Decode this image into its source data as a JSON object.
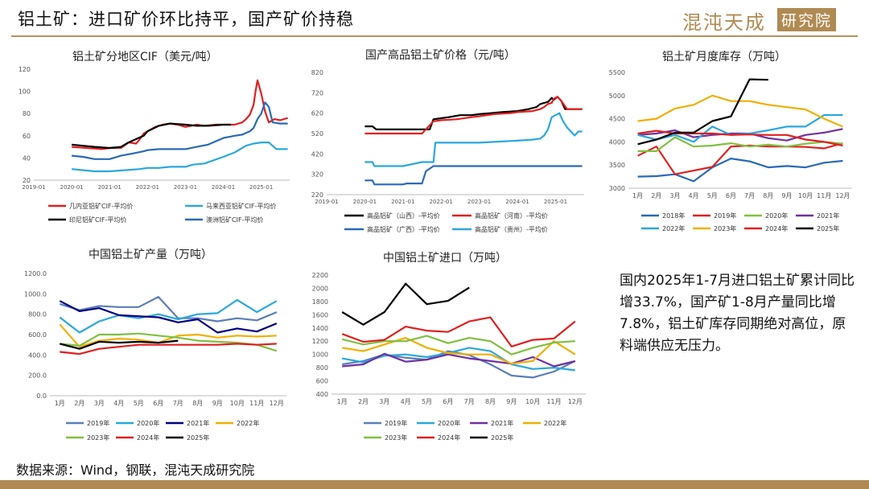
{
  "header": {
    "title": "铝土矿：进口矿价环比持平，国产矿价持稳",
    "logo_main": "混沌天成",
    "logo_box": "研究院"
  },
  "note": "国内2025年1-7月进口铝土矿累计同比增33.7%，国产矿1-8月产量同比增7.8%，铝土矿库存同期绝对高位，原料端供应无压力。",
  "source": "数据来源：Wind，钢联，混沌天成研究院",
  "chart_data": [
    {
      "id": "cif",
      "type": "line",
      "title": "铝土矿分地区CIF（美元/吨）",
      "x_ticks": [
        "2019-01",
        "2020-01",
        "2021-01",
        "2022-01",
        "2023-01",
        "2024-01",
        "2025-01"
      ],
      "x_range": [
        2019.0,
        2025.75
      ],
      "ylim": [
        20,
        120
      ],
      "y_ticks": [
        20,
        40,
        60,
        80,
        100,
        120
      ],
      "series": [
        {
          "name": "几内亚铝矿CIF-平均价",
          "color": "#e02020",
          "x": [
            2020.0,
            2020.4,
            2020.8,
            2021.0,
            2021.3,
            2021.5,
            2021.7,
            2021.8,
            2021.9,
            2022.0,
            2022.2,
            2022.4,
            2022.6,
            2022.8,
            2023.0,
            2023.3,
            2023.5,
            2023.8,
            2024.0,
            2024.3,
            2024.5,
            2024.6,
            2024.7,
            2024.8,
            2024.85,
            2024.9,
            2025.0,
            2025.1,
            2025.2,
            2025.35,
            2025.5,
            2025.7
          ],
          "y": [
            50,
            49,
            48,
            49,
            49,
            54,
            53,
            57,
            62,
            64,
            68,
            70,
            71,
            70,
            68,
            70,
            69,
            70,
            70,
            70,
            72,
            75,
            79,
            88,
            100,
            110,
            98,
            82,
            72,
            75,
            74,
            76
          ]
        },
        {
          "name": "马来西亚铝矿CIF-平均价",
          "color": "#2aa8dc",
          "x": [
            2020.0,
            2020.3,
            2020.6,
            2021.0,
            2021.4,
            2021.8,
            2022.0,
            2022.3,
            2022.6,
            2023.0,
            2023.2,
            2023.5,
            2024.0,
            2024.3,
            2024.6,
            2024.8,
            2025.0,
            2025.2,
            2025.4,
            2025.7
          ],
          "y": [
            30,
            29,
            28,
            28,
            29,
            30,
            31,
            31,
            32,
            32,
            34,
            35,
            41,
            45,
            51,
            53,
            54,
            54,
            48,
            48
          ]
        },
        {
          "name": "印尼铝矿CIF-平均价",
          "color": "#000000",
          "x": [
            2020.0,
            2020.3,
            2020.6,
            2021.0,
            2021.3,
            2021.5,
            2021.7,
            2021.9,
            2022.0,
            2022.3,
            2022.6,
            2023.0,
            2023.3,
            2023.6,
            2024.0,
            2024.2
          ],
          "y": [
            52,
            51,
            50,
            49,
            50,
            54,
            57,
            60,
            64,
            69,
            71,
            70,
            69,
            69,
            70,
            70
          ]
        },
        {
          "name": "澳洲铝矿CIF-平均价",
          "color": "#2a6ab8",
          "x": [
            2020.0,
            2020.3,
            2020.6,
            2021.0,
            2021.3,
            2021.6,
            2021.9,
            2022.0,
            2022.3,
            2022.8,
            2023.0,
            2023.3,
            2023.6,
            2024.0,
            2024.3,
            2024.5,
            2024.7,
            2024.8,
            2024.9,
            2025.0,
            2025.1,
            2025.2,
            2025.3,
            2025.5,
            2025.7
          ],
          "y": [
            42,
            41,
            39,
            39,
            42,
            44,
            46,
            47,
            48,
            48,
            48,
            50,
            52,
            58,
            60,
            61,
            64,
            67,
            75,
            80,
            90,
            86,
            72,
            71,
            71
          ]
        }
      ]
    },
    {
      "id": "domestic",
      "type": "line",
      "title": "国产高品铝土矿价格（元/吨）",
      "x_ticks": [
        "2019-01",
        "2020-01",
        "2021-01",
        "2022-01",
        "2023-01",
        "2024-01",
        "2025-01"
      ],
      "x_range": [
        2019.0,
        2025.75
      ],
      "ylim": [
        220,
        820
      ],
      "y_ticks": [
        220,
        320,
        420,
        520,
        620,
        720,
        820
      ],
      "series": [
        {
          "name": "高品铝矿（山西）-平均价",
          "color": "#000000",
          "x": [
            2020.0,
            2020.2,
            2020.3,
            2021.0,
            2021.5,
            2021.7,
            2021.8,
            2022.0,
            2022.2,
            2022.5,
            2022.8,
            2023.0,
            2023.3,
            2023.6,
            2024.0,
            2024.3,
            2024.5,
            2024.6,
            2024.7,
            2024.8,
            2024.9,
            2024.95,
            2025.05,
            2025.15,
            2025.25,
            2025.7
          ],
          "y": [
            555,
            555,
            540,
            540,
            540,
            540,
            590,
            595,
            600,
            610,
            610,
            615,
            620,
            625,
            630,
            640,
            650,
            665,
            670,
            675,
            695,
            685,
            700,
            680,
            640,
            640
          ]
        },
        {
          "name": "高品铝矿（河南）-平均价",
          "color": "#e02020",
          "x": [
            2020.0,
            2020.5,
            2021.0,
            2021.5,
            2021.8,
            2022.0,
            2022.4,
            2022.8,
            2023.0,
            2023.4,
            2023.8,
            2024.0,
            2024.4,
            2024.6,
            2024.7,
            2024.8,
            2024.9,
            2024.95,
            2025.05,
            2025.15,
            2025.3,
            2025.7
          ],
          "y": [
            520,
            520,
            520,
            520,
            580,
            585,
            590,
            600,
            605,
            615,
            620,
            625,
            630,
            640,
            650,
            665,
            670,
            690,
            700,
            680,
            640,
            640
          ]
        },
        {
          "name": "高品铝矿（广西）-平均价",
          "color": "#2a6ab8",
          "x": [
            2020.0,
            2020.2,
            2020.25,
            2021.0,
            2021.1,
            2021.5,
            2021.6,
            2021.8,
            2025.7
          ],
          "y": [
            290,
            290,
            270,
            270,
            275,
            275,
            335,
            360,
            360
          ]
        },
        {
          "name": "高品铝矿（贵州）-平均价",
          "color": "#2aa8dc",
          "x": [
            2020.0,
            2020.2,
            2020.25,
            2021.0,
            2021.5,
            2021.8,
            2021.85,
            2022.5,
            2023.0,
            2023.5,
            2024.0,
            2024.4,
            2024.6,
            2024.7,
            2024.8,
            2024.9,
            2025.0,
            2025.1,
            2025.2,
            2025.3,
            2025.5,
            2025.6,
            2025.7
          ],
          "y": [
            380,
            380,
            360,
            360,
            380,
            380,
            475,
            475,
            475,
            480,
            485,
            490,
            495,
            510,
            540,
            600,
            610,
            620,
            580,
            550,
            510,
            530,
            530
          ]
        }
      ]
    },
    {
      "id": "inventory",
      "type": "line",
      "title": "铝土矿月度库存（万吨）",
      "categories": [
        "1月",
        "2月",
        "3月",
        "4月",
        "5月",
        "6月",
        "7月",
        "8月",
        "9月",
        "10月",
        "11月",
        "12月"
      ],
      "ylim": [
        3000,
        5500
      ],
      "y_ticks": [
        3000,
        3500,
        4000,
        4500,
        5000,
        5500
      ],
      "series": [
        {
          "name": "2018年",
          "color": "#2a6ab8",
          "values": [
            3250,
            3260,
            3300,
            3150,
            3450,
            3640,
            3580,
            3450,
            3480,
            3450,
            3550,
            3590
          ]
        },
        {
          "name": "2019年",
          "color": "#e02020",
          "values": [
            3700,
            3900,
            3300,
            3380,
            3460,
            3900,
            3920,
            3900,
            3900,
            3890,
            3860,
            3970
          ]
        },
        {
          "name": "2020年",
          "color": "#80c040",
          "values": [
            3800,
            3800,
            4100,
            3900,
            3920,
            3970,
            3900,
            3940,
            3900,
            3960,
            4000,
            3960
          ]
        },
        {
          "name": "2021年",
          "color": "#7030a0",
          "values": [
            4150,
            4180,
            4250,
            4100,
            4150,
            4180,
            4180,
            4080,
            4030,
            4150,
            4200,
            4280
          ]
        },
        {
          "name": "2022年",
          "color": "#2aa8dc",
          "values": [
            4150,
            4050,
            4150,
            4000,
            4330,
            4150,
            4180,
            4250,
            4330,
            4330,
            4580,
            4580
          ]
        },
        {
          "name": "2023年",
          "color": "#f0b000",
          "values": [
            4450,
            4500,
            4720,
            4800,
            5000,
            4880,
            4880,
            4800,
            4750,
            4700,
            4500,
            4330
          ]
        },
        {
          "name": "2024年",
          "color": "#e02020",
          "values": [
            4180,
            4240,
            4180,
            4180,
            4180,
            4150,
            4160,
            4150,
            4150,
            4050,
            4000,
            3920
          ]
        },
        {
          "name": "2025年",
          "color": "#000000",
          "values": [
            3950,
            4050,
            4200,
            4200,
            4450,
            4550,
            5350,
            5340,
            null,
            null,
            null,
            null
          ]
        }
      ]
    },
    {
      "id": "production",
      "type": "line",
      "title": "中国铝土矿产量（万吨）",
      "categories": [
        "1月",
        "2月",
        "3月",
        "4月",
        "5月",
        "6月",
        "7月",
        "8月",
        "9月",
        "10月",
        "11月",
        "12月"
      ],
      "ylim": [
        0,
        1200
      ],
      "y_ticks": [
        "0.0",
        "200.0",
        "400.0",
        "600.0",
        "800.0",
        "1000.0",
        "1200.0"
      ],
      "series": [
        {
          "name": "2019年",
          "color": "#5a7fb8",
          "values": [
            900,
            840,
            880,
            870,
            870,
            970,
            760,
            760,
            730,
            760,
            740,
            820
          ]
        },
        {
          "name": "2020年",
          "color": "#2aa8dc",
          "values": [
            770,
            620,
            730,
            790,
            760,
            800,
            750,
            800,
            810,
            940,
            820,
            930
          ]
        },
        {
          "name": "2021年",
          "color": "#000080",
          "values": [
            930,
            830,
            860,
            790,
            780,
            770,
            720,
            750,
            620,
            660,
            630,
            710
          ]
        },
        {
          "name": "2022年",
          "color": "#f0b000",
          "values": [
            700,
            480,
            540,
            560,
            550,
            520,
            590,
            600,
            570,
            590,
            580,
            590
          ]
        },
        {
          "name": "2023年",
          "color": "#80c040",
          "values": [
            510,
            490,
            600,
            600,
            610,
            590,
            570,
            540,
            530,
            520,
            500,
            440
          ]
        },
        {
          "name": "2024年",
          "color": "#e02020",
          "values": [
            430,
            410,
            460,
            480,
            500,
            500,
            500,
            500,
            500,
            510,
            500,
            510
          ]
        },
        {
          "name": "2025年",
          "color": "#000000",
          "values": [
            510,
            460,
            530,
            520,
            530,
            520,
            540,
            null,
            null,
            null,
            null,
            null
          ]
        }
      ]
    },
    {
      "id": "imports",
      "type": "line",
      "title": "中国铝土矿进口（万吨）",
      "categories": [
        "1月",
        "2月",
        "3月",
        "4月",
        "5月",
        "6月",
        "7月",
        "8月",
        "9月",
        "10月",
        "11月",
        "12月"
      ],
      "ylim": [
        400,
        2200
      ],
      "y_ticks": [
        400,
        600,
        800,
        1000,
        1200,
        1400,
        1600,
        1800,
        2000,
        2200
      ],
      "series": [
        {
          "name": "2019年",
          "color": "#5a7fb8",
          "values": [
            850,
            900,
            1000,
            950,
            920,
            1050,
            990,
            850,
            680,
            650,
            740,
            900
          ]
        },
        {
          "name": "2020年",
          "color": "#2aa8dc",
          "values": [
            940,
            880,
            980,
            1000,
            960,
            1020,
            1100,
            1050,
            850,
            780,
            800,
            760
          ]
        },
        {
          "name": "2021年",
          "color": "#7030a0",
          "values": [
            820,
            850,
            1010,
            890,
            920,
            1000,
            940,
            900,
            860,
            960,
            820,
            900
          ]
        },
        {
          "name": "2022年",
          "color": "#f0b000",
          "values": [
            1100,
            1050,
            1150,
            1250,
            1100,
            1020,
            1000,
            1000,
            860,
            900,
            1200,
            1000
          ]
        },
        {
          "name": "2023年",
          "color": "#80c040",
          "values": [
            1230,
            1150,
            1200,
            1200,
            1280,
            1170,
            1250,
            1200,
            1000,
            1100,
            1180,
            1200
          ]
        },
        {
          "name": "2024年",
          "color": "#e02020",
          "values": [
            1310,
            1190,
            1220,
            1420,
            1360,
            1340,
            1500,
            1560,
            1120,
            1220,
            1240,
            1500
          ]
        },
        {
          "name": "2025年",
          "color": "#000000",
          "values": [
            1640,
            1450,
            1640,
            2070,
            1760,
            1810,
            2010,
            null,
            null,
            null,
            null,
            null
          ]
        }
      ]
    }
  ]
}
